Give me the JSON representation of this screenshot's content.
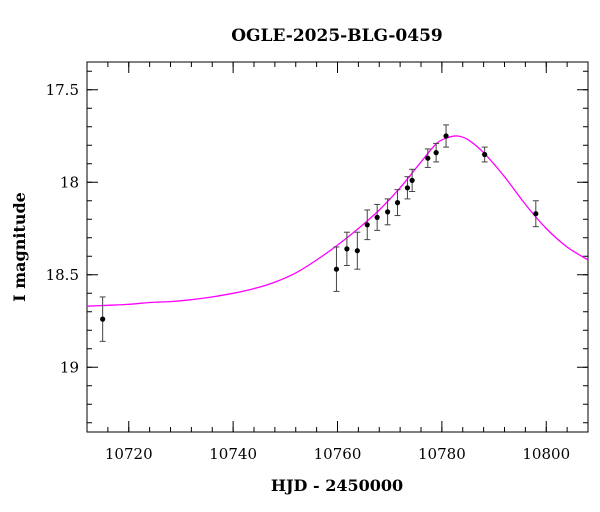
{
  "chart_data": {
    "type": "scatter",
    "title": "OGLE-2025-BLG-0459",
    "xlabel": "HJD - 2450000",
    "ylabel": "I magnitude",
    "xlim": [
      10712,
      10808
    ],
    "ylim": [
      19.35,
      17.35
    ],
    "y_inverted": true,
    "x_major_ticks": [
      10720,
      10740,
      10760,
      10780,
      10800
    ],
    "x_tick_labels": [
      "10720",
      "10740",
      "10760",
      "10780",
      "10800"
    ],
    "x_minor_step": 4,
    "y_major_ticks": [
      17.5,
      18,
      18.5,
      19
    ],
    "y_tick_labels": [
      "17.5",
      "18",
      "18.5",
      "19"
    ],
    "y_minor_step": 0.1,
    "grid": false,
    "colors": {
      "model": "#ff00ff",
      "points": "#000000",
      "errorbars": "#444444"
    },
    "series": [
      {
        "kind": "points_with_errors",
        "points": [
          {
            "x": 10715.0,
            "y": 18.74,
            "err": 0.12
          },
          {
            "x": 10759.8,
            "y": 18.47,
            "err": 0.12
          },
          {
            "x": 10761.8,
            "y": 18.36,
            "err": 0.09
          },
          {
            "x": 10763.8,
            "y": 18.37,
            "err": 0.1
          },
          {
            "x": 10765.7,
            "y": 18.23,
            "err": 0.08
          },
          {
            "x": 10767.6,
            "y": 18.19,
            "err": 0.07
          },
          {
            "x": 10769.6,
            "y": 18.16,
            "err": 0.07
          },
          {
            "x": 10771.5,
            "y": 18.11,
            "err": 0.07
          },
          {
            "x": 10773.4,
            "y": 18.03,
            "err": 0.06
          },
          {
            "x": 10774.3,
            "y": 17.99,
            "err": 0.06
          },
          {
            "x": 10777.3,
            "y": 17.87,
            "err": 0.05
          },
          {
            "x": 10778.9,
            "y": 17.84,
            "err": 0.05
          },
          {
            "x": 10780.8,
            "y": 17.75,
            "err": 0.06
          },
          {
            "x": 10788.2,
            "y": 17.85,
            "err": 0.04
          },
          {
            "x": 10798.0,
            "y": 18.17,
            "err": 0.07
          }
        ]
      },
      {
        "kind": "model_curve",
        "x": [
          10712,
          10716,
          10720,
          10724,
          10728,
          10732,
          10736,
          10740,
          10744,
          10748,
          10752,
          10756,
          10760,
          10764,
          10768,
          10772,
          10776,
          10779,
          10781,
          10783,
          10785,
          10788,
          10792,
          10796,
          10800,
          10804,
          10808
        ],
        "y": [
          18.67,
          18.665,
          18.66,
          18.65,
          18.645,
          18.635,
          18.62,
          18.6,
          18.575,
          18.54,
          18.49,
          18.42,
          18.34,
          18.25,
          18.15,
          18.03,
          17.89,
          17.79,
          17.76,
          17.75,
          17.77,
          17.84,
          17.97,
          18.12,
          18.25,
          18.35,
          18.42
        ]
      }
    ]
  }
}
